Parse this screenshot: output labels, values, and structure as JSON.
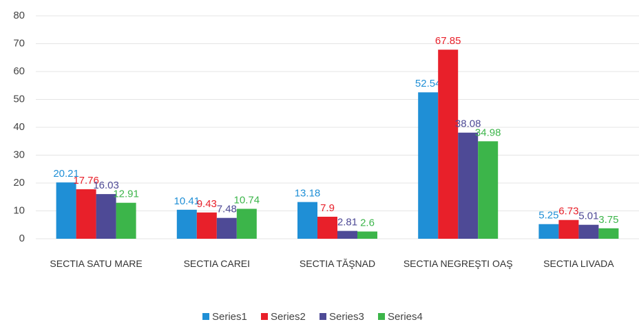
{
  "chart_data": {
    "type": "bar",
    "categories": [
      "SECTIA SATU MARE",
      "SECTIA CAREI",
      "SECTIA TĂŞNAD",
      "SECTIA NEGREŞTI OAŞ",
      "SECTIA LIVADA"
    ],
    "series": [
      {
        "name": "Series1",
        "color": "#1f8fd6",
        "values": [
          20.21,
          10.41,
          13.18,
          52.54,
          5.25
        ]
      },
      {
        "name": "Series2",
        "color": "#e8202a",
        "values": [
          17.76,
          9.43,
          7.9,
          67.85,
          6.73
        ]
      },
      {
        "name": "Series3",
        "color": "#4e4a96",
        "values": [
          16.03,
          7.48,
          2.81,
          38.08,
          5.01
        ]
      },
      {
        "name": "Series4",
        "color": "#3cb54a",
        "values": [
          12.91,
          10.74,
          2.6,
          34.98,
          3.75
        ]
      }
    ],
    "ylim": [
      0,
      80
    ],
    "yticks": [
      0,
      10,
      20,
      30,
      40,
      50,
      60,
      70,
      80
    ],
    "grid": true,
    "legend": "bottom"
  }
}
